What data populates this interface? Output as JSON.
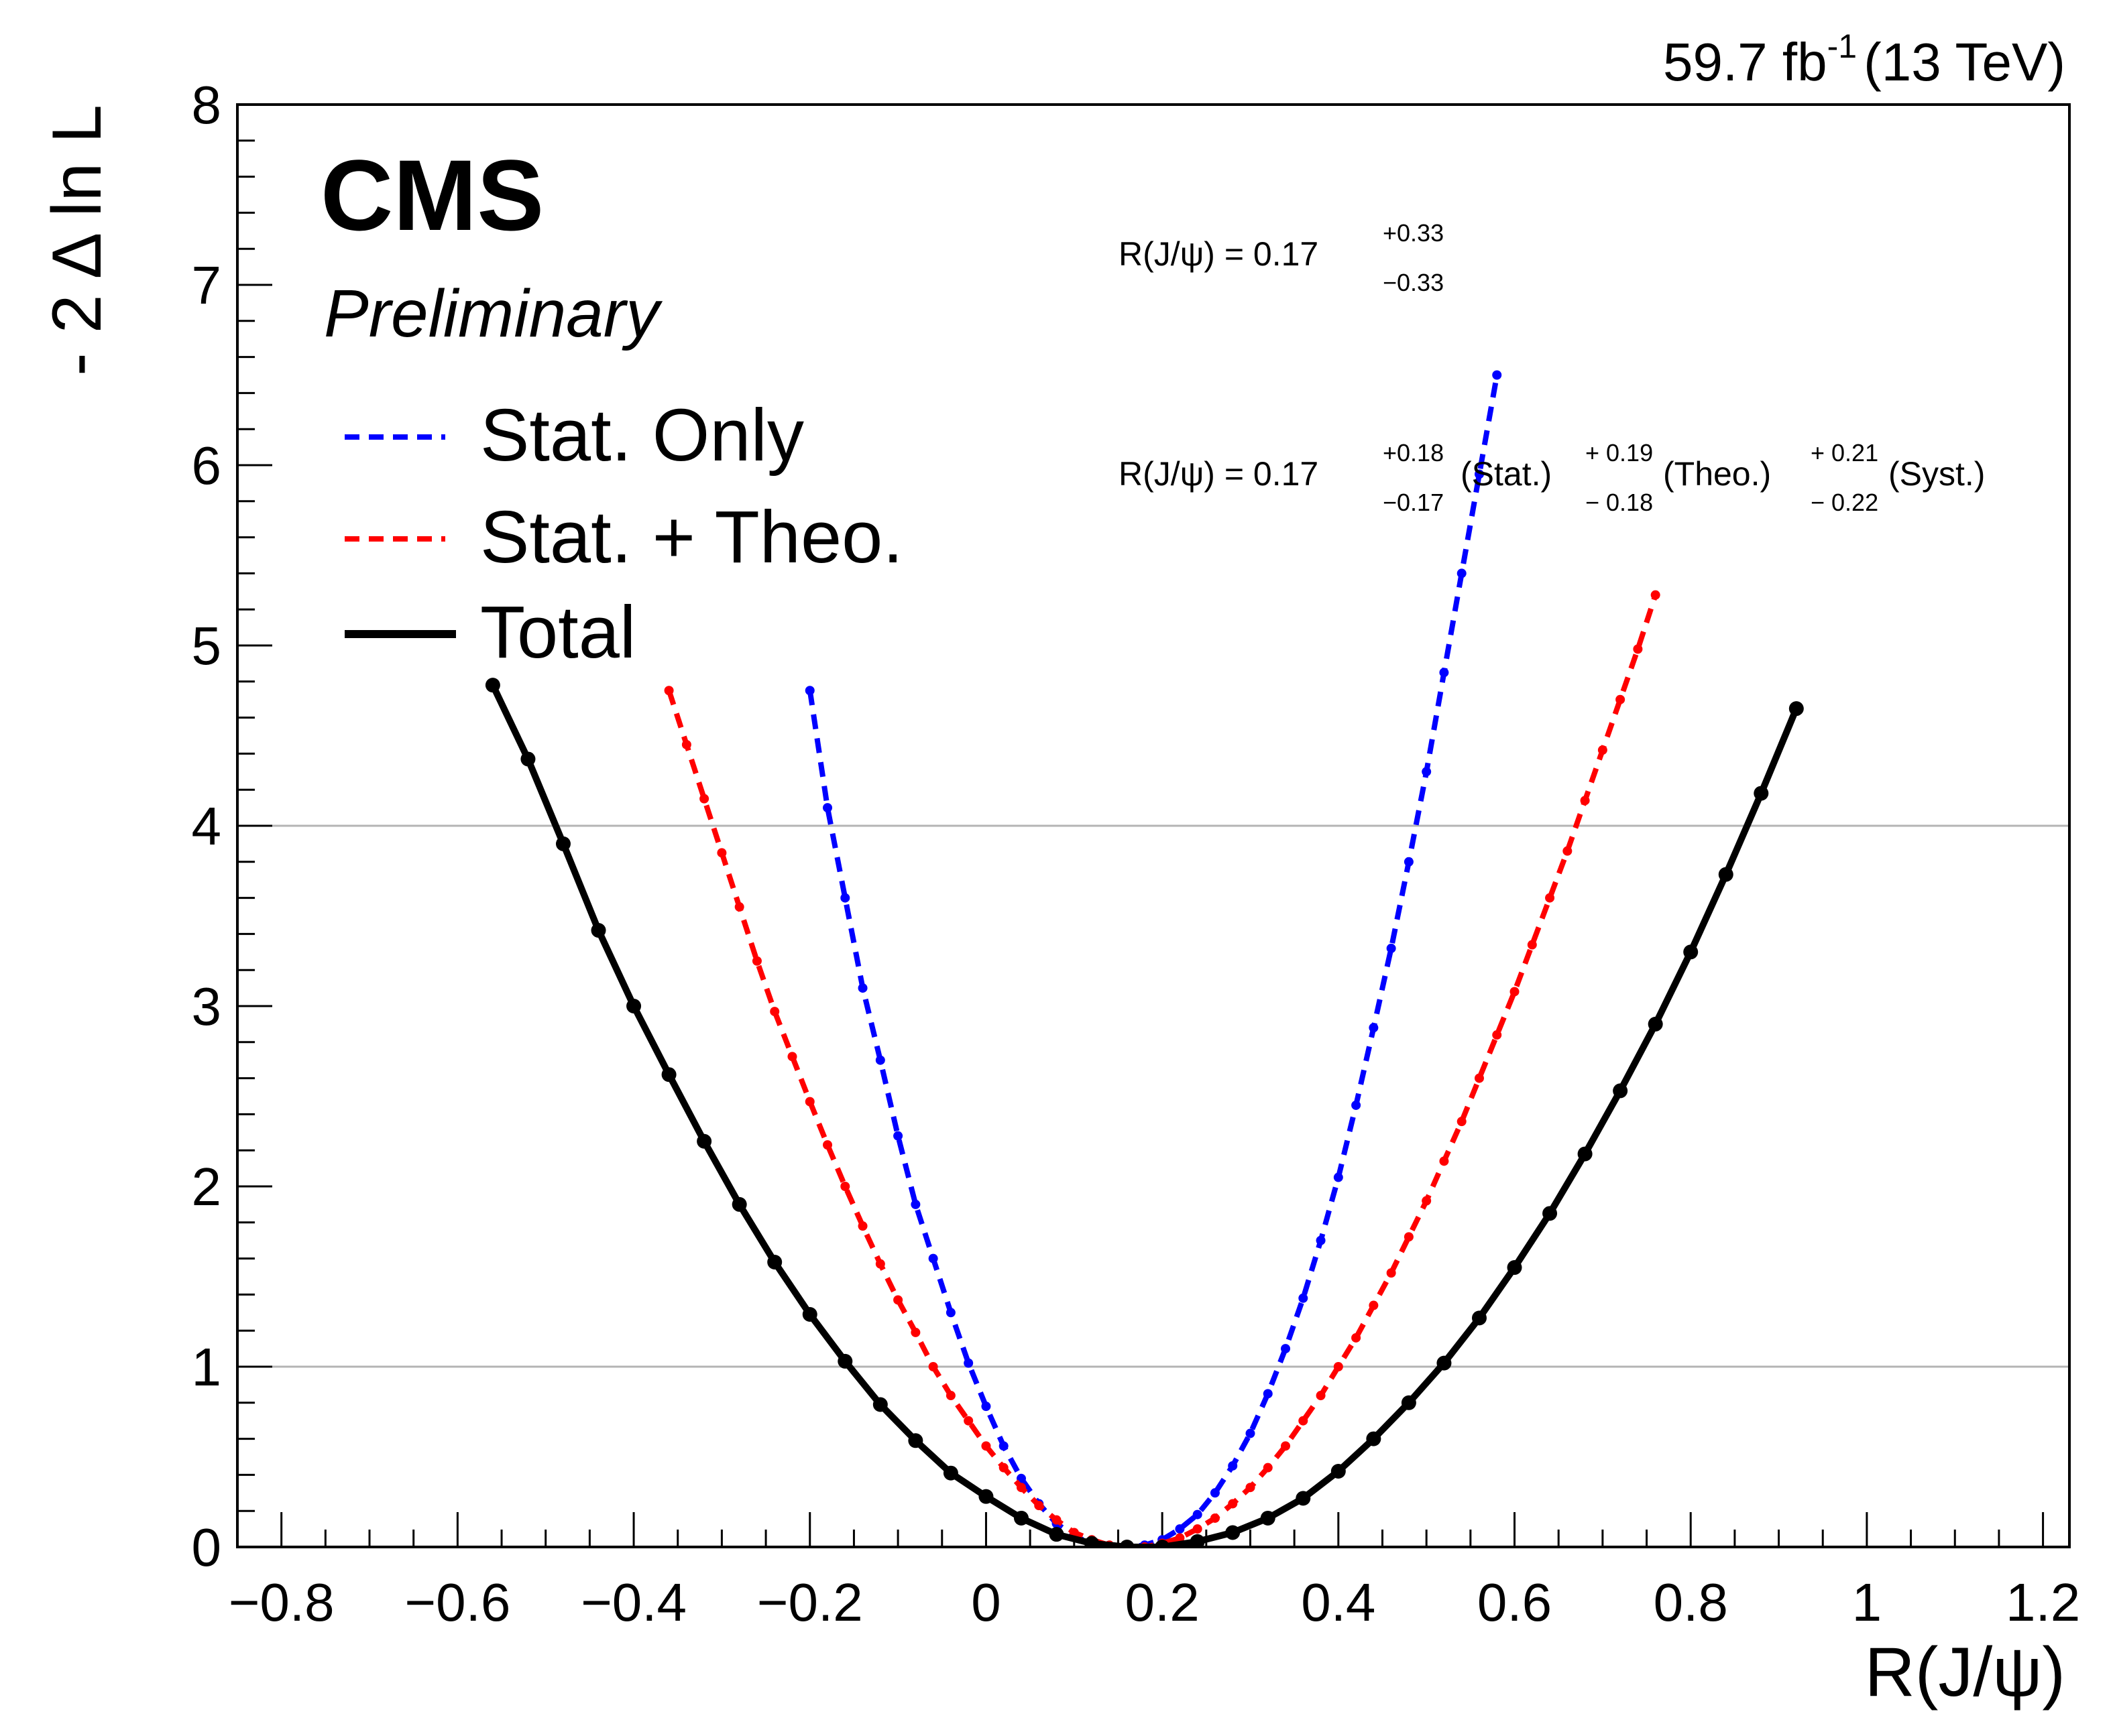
{
  "header": {
    "logo_text": "CMS",
    "subtitle": "Preliminary",
    "lumi_main": "59.7 fb",
    "lumi_sup": "-1",
    "lumi_tail": "(13 TeV)"
  },
  "results": {
    "total": {
      "prefix": "R(J/ψ) = 0.17",
      "plus": "+0.33",
      "minus": "−0.33"
    },
    "breakdown": {
      "prefix": "R(J/ψ) = 0.17",
      "stat_plus": "+0.18",
      "stat_minus": "−0.17",
      "stat_label": "(Stat.)",
      "theo_plus": "+ 0.19",
      "theo_minus": "− 0.18",
      "theo_label": "(Theo.)",
      "syst_plus": "+ 0.21",
      "syst_minus": "− 0.22",
      "syst_label": "(Syst.)"
    }
  },
  "chart_data": {
    "type": "line",
    "title": "",
    "xlabel": "R(J/ψ)",
    "ylabel": "- 2 Δ ln L",
    "xlim": [
      -0.85,
      1.23
    ],
    "ylim": [
      0,
      8
    ],
    "x_ticks": [
      -0.8,
      -0.6,
      -0.4,
      -0.2,
      0,
      0.2,
      0.4,
      0.6,
      0.8,
      1,
      1.2
    ],
    "x_tick_labels": [
      "−0.8",
      "−0.6",
      "−0.4",
      "−0.2",
      "0",
      "0.2",
      "0.4",
      "0.6",
      "0.8",
      "1",
      "1.2"
    ],
    "y_ticks": [
      0,
      1,
      2,
      3,
      4,
      5,
      6,
      7,
      8
    ],
    "y_tick_labels": [
      "0",
      "1",
      "2",
      "3",
      "4",
      "5",
      "6",
      "7",
      "8"
    ],
    "reference_lines_y": [
      1,
      4
    ],
    "legend": {
      "placement": "top-left"
    },
    "series": [
      {
        "name": "Stat. Only",
        "style": "dashed",
        "color": "#0000ff",
        "x": [
          -0.2,
          -0.18,
          -0.16,
          -0.14,
          -0.12,
          -0.1,
          -0.08,
          -0.06,
          -0.04,
          -0.02,
          0.0,
          0.02,
          0.04,
          0.06,
          0.08,
          0.1,
          0.12,
          0.14,
          0.16,
          0.18,
          0.2,
          0.22,
          0.24,
          0.26,
          0.28,
          0.3,
          0.32,
          0.34,
          0.36,
          0.38,
          0.4,
          0.42,
          0.44,
          0.46,
          0.48,
          0.5,
          0.52,
          0.54,
          0.56,
          0.58
        ],
        "y": [
          4.75,
          4.1,
          3.6,
          3.1,
          2.7,
          2.28,
          1.9,
          1.6,
          1.3,
          1.02,
          0.78,
          0.56,
          0.38,
          0.24,
          0.13,
          0.06,
          0.02,
          0.0,
          0.0,
          0.01,
          0.04,
          0.1,
          0.18,
          0.3,
          0.45,
          0.63,
          0.85,
          1.1,
          1.38,
          1.7,
          2.05,
          2.45,
          2.88,
          3.32,
          3.8,
          4.3,
          4.85,
          5.4,
          5.95,
          6.5
        ]
      },
      {
        "name": "Stat. + Theo.",
        "style": "dashed",
        "color": "#ff0000",
        "x": [
          -0.36,
          -0.34,
          -0.32,
          -0.3,
          -0.28,
          -0.26,
          -0.24,
          -0.22,
          -0.2,
          -0.18,
          -0.16,
          -0.14,
          -0.12,
          -0.1,
          -0.08,
          -0.06,
          -0.04,
          -0.02,
          0.0,
          0.02,
          0.04,
          0.06,
          0.08,
          0.1,
          0.12,
          0.14,
          0.16,
          0.18,
          0.2,
          0.22,
          0.24,
          0.26,
          0.28,
          0.3,
          0.32,
          0.34,
          0.36,
          0.38,
          0.4,
          0.42,
          0.44,
          0.46,
          0.48,
          0.5,
          0.52,
          0.54,
          0.56,
          0.58,
          0.6,
          0.62,
          0.64,
          0.66,
          0.68,
          0.7,
          0.72,
          0.74,
          0.76
        ],
        "y": [
          4.75,
          4.45,
          4.15,
          3.85,
          3.55,
          3.25,
          2.97,
          2.72,
          2.47,
          2.23,
          2.0,
          1.78,
          1.57,
          1.37,
          1.19,
          1.0,
          0.84,
          0.7,
          0.56,
          0.44,
          0.33,
          0.23,
          0.15,
          0.08,
          0.04,
          0.01,
          0.0,
          0.0,
          0.02,
          0.05,
          0.1,
          0.16,
          0.24,
          0.33,
          0.44,
          0.56,
          0.7,
          0.84,
          1.0,
          1.16,
          1.34,
          1.52,
          1.72,
          1.92,
          2.14,
          2.36,
          2.6,
          2.84,
          3.08,
          3.34,
          3.6,
          3.86,
          4.14,
          4.42,
          4.7,
          4.98,
          5.28
        ]
      },
      {
        "name": "Total",
        "style": "solid",
        "color": "#000000",
        "x": [
          -0.56,
          -0.52,
          -0.48,
          -0.44,
          -0.4,
          -0.36,
          -0.32,
          -0.28,
          -0.24,
          -0.2,
          -0.16,
          -0.12,
          -0.08,
          -0.04,
          0.0,
          0.04,
          0.08,
          0.12,
          0.16,
          0.2,
          0.24,
          0.28,
          0.32,
          0.36,
          0.4,
          0.44,
          0.48,
          0.52,
          0.56,
          0.6,
          0.64,
          0.68,
          0.72,
          0.76,
          0.8,
          0.84,
          0.88,
          0.92
        ],
        "y": [
          4.78,
          4.37,
          3.9,
          3.42,
          3.0,
          2.62,
          2.25,
          1.9,
          1.58,
          1.29,
          1.03,
          0.79,
          0.59,
          0.41,
          0.28,
          0.16,
          0.07,
          0.02,
          0.0,
          0.0,
          0.03,
          0.08,
          0.16,
          0.27,
          0.42,
          0.6,
          0.8,
          1.02,
          1.27,
          1.55,
          1.85,
          2.18,
          2.53,
          2.9,
          3.3,
          3.73,
          4.18,
          4.65
        ]
      }
    ]
  }
}
